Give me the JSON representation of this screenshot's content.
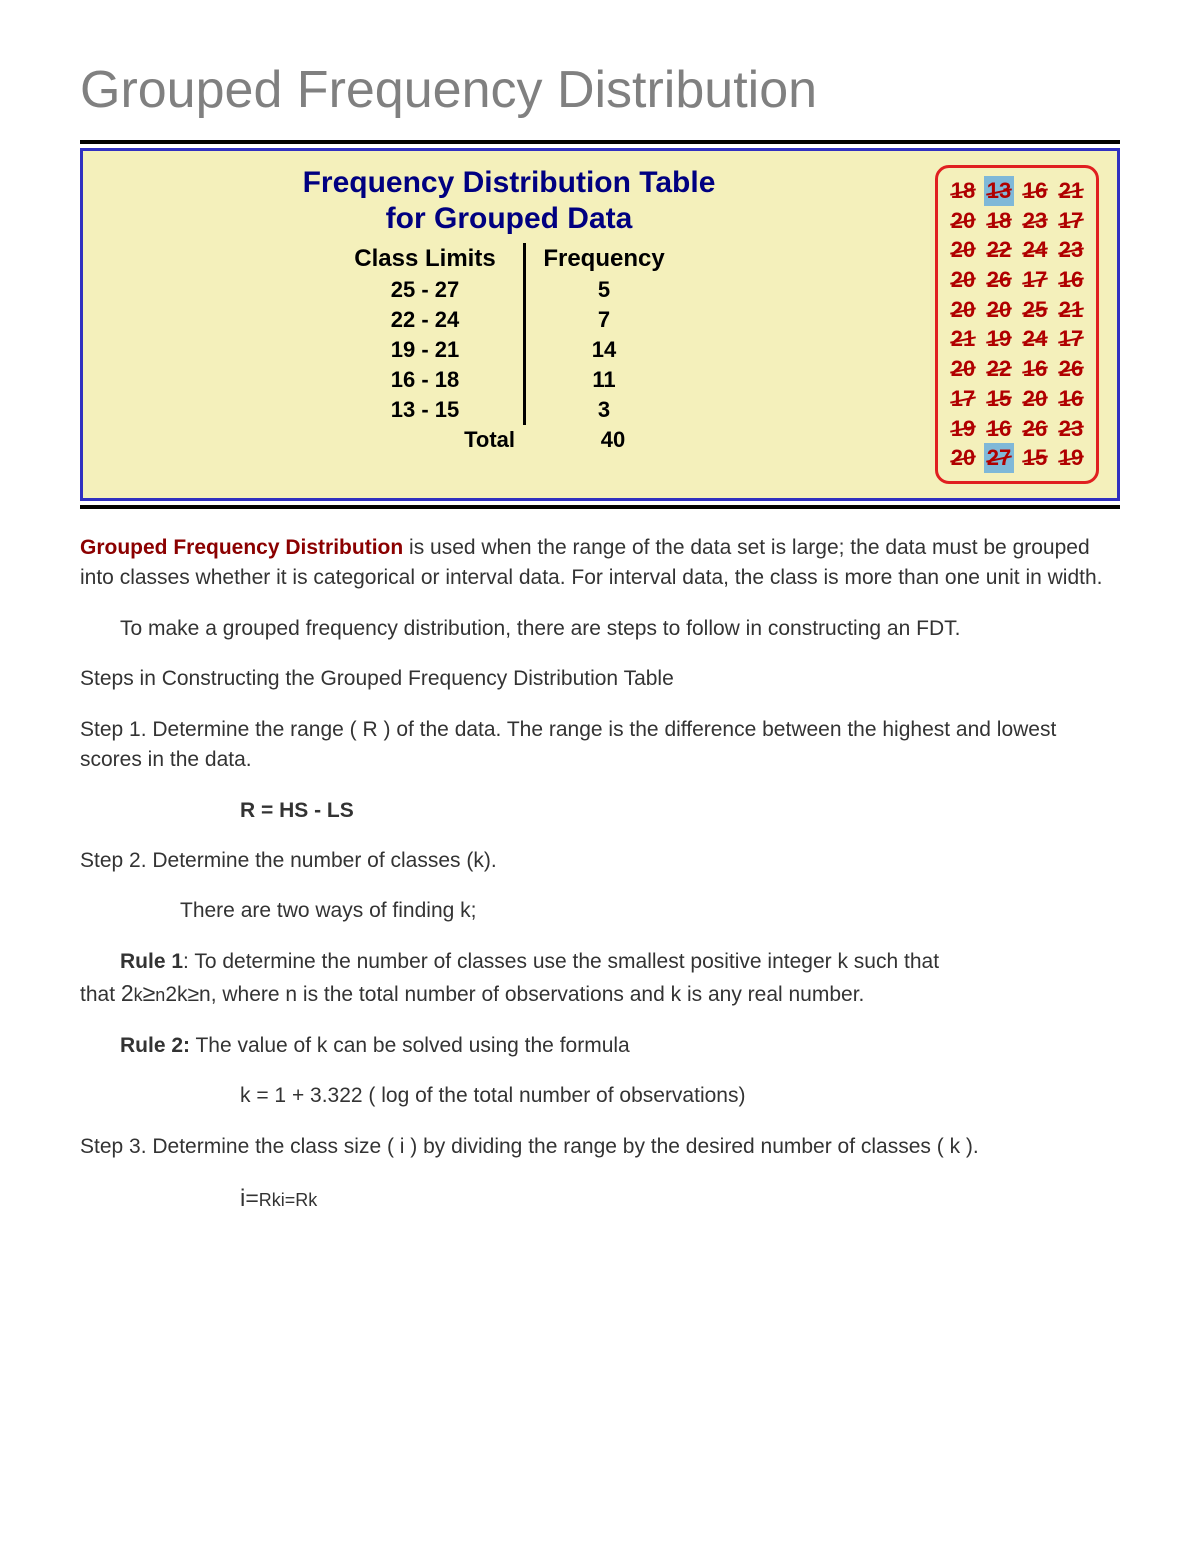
{
  "title": "Grouped Frequency Distribution",
  "panel": {
    "heading_line1": "Frequency Distribution Table",
    "heading_line2": "for Grouped Data",
    "col1_header": "Class Limits",
    "col2_header": "Frequency",
    "rows": [
      {
        "limits": "25 - 27",
        "freq": "5"
      },
      {
        "limits": "22 - 24",
        "freq": "7"
      },
      {
        "limits": "19 - 21",
        "freq": "14"
      },
      {
        "limits": "16 - 18",
        "freq": "11"
      },
      {
        "limits": "13 - 15",
        "freq": "3"
      }
    ],
    "total_label": "Total",
    "total_value": "40",
    "colors": {
      "panel_bg": "#f4f0bb",
      "panel_border": "#3030c0",
      "title_color": "#000080",
      "databox_border": "#e02020",
      "data_text": "#b00000",
      "highlight_bg": "#7fb8d8"
    }
  },
  "data_grid": [
    [
      {
        "v": "18",
        "s": true
      },
      {
        "v": "13",
        "s": true,
        "hl": true
      },
      {
        "v": "16",
        "s": true
      },
      {
        "v": "21",
        "s": true
      }
    ],
    [
      {
        "v": "20",
        "s": true
      },
      {
        "v": "18",
        "s": true
      },
      {
        "v": "23",
        "s": true
      },
      {
        "v": "17",
        "s": true
      }
    ],
    [
      {
        "v": "20",
        "s": true
      },
      {
        "v": "22",
        "s": true
      },
      {
        "v": "24",
        "s": true
      },
      {
        "v": "23",
        "s": true
      }
    ],
    [
      {
        "v": "20",
        "s": true
      },
      {
        "v": "26",
        "s": true
      },
      {
        "v": "17",
        "s": true
      },
      {
        "v": "16",
        "s": true
      }
    ],
    [
      {
        "v": "20",
        "s": true
      },
      {
        "v": "20",
        "s": true
      },
      {
        "v": "25",
        "s": true
      },
      {
        "v": "21",
        "s": true
      }
    ],
    [
      {
        "v": "21",
        "s": true
      },
      {
        "v": "19",
        "s": true
      },
      {
        "v": "24",
        "s": true
      },
      {
        "v": "17",
        "s": true
      }
    ],
    [
      {
        "v": "20",
        "s": true
      },
      {
        "v": "22",
        "s": true
      },
      {
        "v": "16",
        "s": true
      },
      {
        "v": "26",
        "s": true
      }
    ],
    [
      {
        "v": "17",
        "s": true
      },
      {
        "v": "15",
        "s": true
      },
      {
        "v": "20",
        "s": true
      },
      {
        "v": "16",
        "s": true
      }
    ],
    [
      {
        "v": "19",
        "s": true
      },
      {
        "v": "16",
        "s": true
      },
      {
        "v": "26",
        "s": true
      },
      {
        "v": "23",
        "s": true
      }
    ],
    [
      {
        "v": "20",
        "s": true
      },
      {
        "v": "27",
        "s": true,
        "hl": true
      },
      {
        "v": "15",
        "s": true
      },
      {
        "v": "19",
        "s": true
      }
    ]
  ],
  "para1_lead": "Grouped Frequency Distribution",
  "para1_rest": " is used when the range of the data set is large; the data must be grouped into classes whether it is categorical or interval data. For interval data, the class is more than one unit in width.",
  "para2": "To make a grouped frequency distribution, there are steps to follow in constructing an FDT.",
  "steps_heading": " Steps in Constructing the Grouped Frequency Distribution Table",
  "step1": "Step 1. Determine the range ( R ) of the data. The range is the difference between the highest and lowest scores in the data.",
  "formula_r": "R = HS - LS",
  "step2": "Step 2. Determine the number of classes (k).",
  "step2_sub": "There are two ways of finding k;",
  "rule1_label": "Rule 1",
  "rule1_text_a": ": To determine the number of classes use the smallest positive integer k such that  ",
  "rule1_math": "2k≥n",
  "rule1_text_b": "2k≥n, where n is the total number of observations and k is any real number.",
  "rule2_label": "Rule 2:",
  "rule2_text": " The value of k can be solved using the formula",
  "formula_k": "k = 1 + 3.322 ( log of the total number of observations)",
  "step3": "Step 3. Determine the class size ( i  ) by dividing the range by the desired number of classes ( k ).",
  "formula_i": "i=Rki=Rk"
}
